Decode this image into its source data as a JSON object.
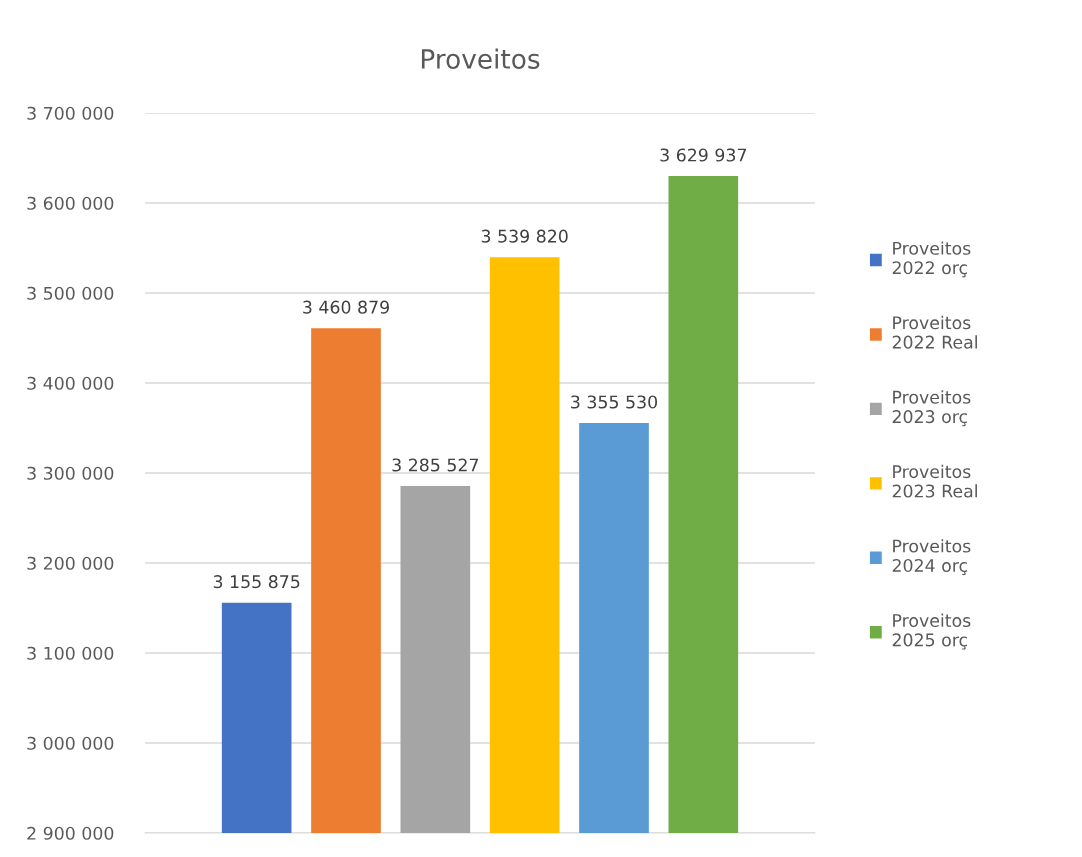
{
  "chart_data": {
    "type": "bar",
    "title": "Proveitos",
    "categories": [
      null
    ],
    "series": [
      {
        "name": "Proveitos 2022 orç",
        "color": "#4472c4",
        "values": [
          3155875
        ],
        "value_labels": [
          "3 155 875"
        ]
      },
      {
        "name": "Proveitos 2022 Real",
        "color": "#ed7d31",
        "values": [
          3460879
        ],
        "value_labels": [
          "3 460 879"
        ]
      },
      {
        "name": "Proveitos 2023 orç",
        "color": "#a5a5a5",
        "values": [
          3285527
        ],
        "value_labels": [
          "3 285 527"
        ]
      },
      {
        "name": "Proveitos 2023 Real",
        "color": "#ffc000",
        "values": [
          3539820
        ],
        "value_labels": [
          "3 539 820"
        ]
      },
      {
        "name": "Proveitos 2024 orç",
        "color": "#5b9bd5",
        "values": [
          3355530
        ],
        "value_labels": [
          "3 355 530"
        ]
      },
      {
        "name": "Proveitos 2025 orç",
        "color": "#70ad47",
        "values": [
          3629937
        ],
        "value_labels": [
          "3 629 937"
        ]
      }
    ],
    "ylim": [
      2900000,
      3700000
    ],
    "yticks": [
      {
        "value": 2900000,
        "label": "2 900 000"
      },
      {
        "value": 3000000,
        "label": "3 000 000"
      },
      {
        "value": 3100000,
        "label": "3 100 000"
      },
      {
        "value": 3200000,
        "label": "3 200 000"
      },
      {
        "value": 3300000,
        "label": "3 300 000"
      },
      {
        "value": 3400000,
        "label": "3 400 000"
      },
      {
        "value": 3500000,
        "label": "3 500 000"
      },
      {
        "value": 3600000,
        "label": "3 600 000"
      },
      {
        "value": 3700000,
        "label": "3 700 000"
      }
    ],
    "grid": "y",
    "legend": "right"
  }
}
